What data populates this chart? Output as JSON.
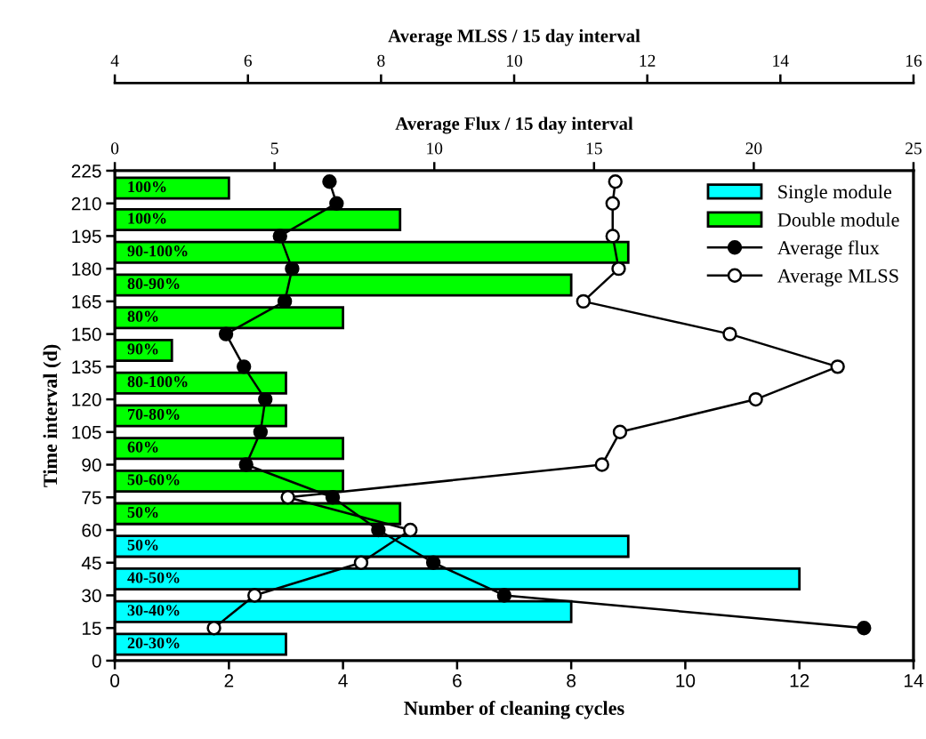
{
  "chart_data": [
    {
      "type": "bar",
      "orientation": "horizontal",
      "xlabel": "Number of cleaning cycles",
      "ylabel": "Time interval (d)",
      "x2label": "Average Flux / 15 day interval",
      "xlim": [
        0,
        14
      ],
      "xticks": [
        0,
        2,
        4,
        6,
        8,
        10,
        12,
        14
      ],
      "ylim": [
        0,
        225
      ],
      "yticks": [
        0,
        15,
        30,
        45,
        60,
        75,
        90,
        105,
        120,
        135,
        150,
        165,
        180,
        195,
        210,
        225
      ],
      "x2lim": [
        0,
        25
      ],
      "x2ticks": [
        0,
        5,
        10,
        15,
        20,
        25
      ],
      "legend": "top right",
      "series": [
        {
          "name": "Single module",
          "color": "#00ffff",
          "x": [
            7.5,
            22.5,
            37.5,
            52.5
          ],
          "values": [
            3,
            8,
            12,
            9
          ]
        },
        {
          "name": "Double module",
          "color": "#00ff00",
          "x": [
            67.5,
            82.5,
            97.5,
            112.5,
            127.5,
            142.5,
            157.5,
            172.5,
            187.5,
            202.5,
            217
          ],
          "values": [
            5,
            4,
            4,
            3,
            3,
            1,
            4,
            8,
            9,
            5,
            2
          ]
        },
        {
          "name": "Average flux",
          "type": "line",
          "axis": "x2",
          "marker": "circle",
          "color": "#000000",
          "x": [
            15,
            30,
            45,
            60,
            75,
            90,
            105,
            120,
            135,
            150,
            165,
            180,
            195,
            210,
            220
          ],
          "values": [
            23.45,
            12.19,
            9.97,
            8.25,
            6.82,
            4.11,
            4.56,
            4.71,
            4.04,
            3.48,
            5.32,
            5.55,
            5.17,
            6.94,
            6.72
          ]
        }
      ],
      "annotations": [
        "20-30%",
        "30-40%",
        "40-50%",
        "50%",
        "50%",
        "50-60%",
        "60%",
        "70-80%",
        "80-100%",
        "90%",
        "80%",
        "80-90%",
        "90-100%",
        "100%",
        "100%"
      ]
    },
    {
      "type": "line",
      "orientation": "horizontal",
      "xlabel": "Average MLSS / 15 day interval",
      "xlim": [
        4,
        16
      ],
      "xticks": [
        4,
        6,
        8,
        10,
        12,
        14,
        16
      ],
      "ylim": [
        0,
        225
      ],
      "tick_labels": "x",
      "legend": "top right",
      "series": [
        {
          "name": "Average MLSS",
          "marker": "circle",
          "color": "#ffffff",
          "x": [
            15,
            30,
            45,
            60,
            75,
            90,
            105,
            120,
            135,
            150,
            165,
            180,
            195,
            210,
            220
          ],
          "values": [
            5.49,
            6.1,
            7.7,
            8.44,
            6.6,
            11.32,
            11.59,
            13.63,
            14.86,
            13.24,
            11.04,
            11.57,
            11.48,
            11.48,
            11.52
          ]
        }
      ]
    }
  ]
}
